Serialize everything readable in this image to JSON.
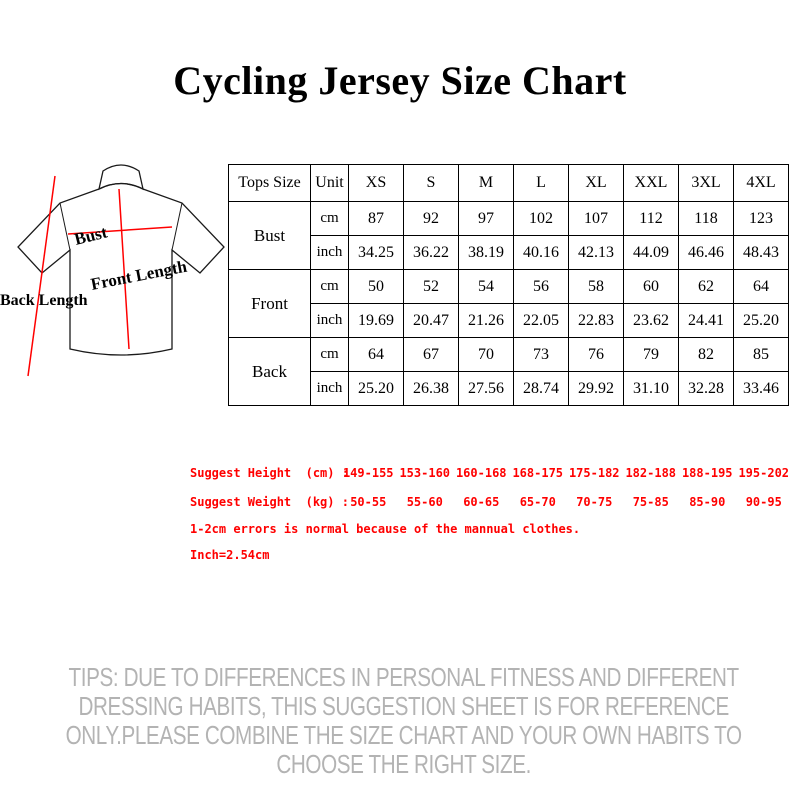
{
  "page": {
    "title": "Cycling Jersey Size Chart"
  },
  "diagram": {
    "labels": {
      "bust": "Bust",
      "front_length": "Front Length",
      "back_length": "Back Length"
    },
    "line_color": "#ff0000"
  },
  "size_table": {
    "header": [
      "Tops Size",
      "Unit",
      "XS",
      "S",
      "M",
      "L",
      "XL",
      "XXL",
      "3XL",
      "4XL"
    ],
    "groups": [
      {
        "name": "Bust",
        "rows": [
          {
            "unit": "cm",
            "values": [
              "87",
              "92",
              "97",
              "102",
              "107",
              "112",
              "118",
              "123"
            ]
          },
          {
            "unit": "inch",
            "values": [
              "34.25",
              "36.22",
              "38.19",
              "40.16",
              "42.13",
              "44.09",
              "46.46",
              "48.43"
            ]
          }
        ]
      },
      {
        "name": "Front",
        "rows": [
          {
            "unit": "cm",
            "values": [
              "50",
              "52",
              "54",
              "56",
              "58",
              "60",
              "62",
              "64"
            ]
          },
          {
            "unit": "inch",
            "values": [
              "19.69",
              "20.47",
              "21.26",
              "22.05",
              "22.83",
              "23.62",
              "24.41",
              "25.20"
            ]
          }
        ]
      },
      {
        "name": "Back",
        "rows": [
          {
            "unit": "cm",
            "values": [
              "64",
              "67",
              "70",
              "73",
              "76",
              "79",
              "82",
              "85"
            ]
          },
          {
            "unit": "inch",
            "values": [
              "25.20",
              "26.38",
              "27.56",
              "28.74",
              "29.92",
              "31.10",
              "32.28",
              "33.46"
            ]
          }
        ]
      }
    ]
  },
  "suggestions": {
    "color": "#ff0000",
    "height_label": "Suggest Height  (cm) :",
    "height_values": [
      "149-155",
      "153-160",
      "160-168",
      "168-175",
      "175-182",
      "182-188",
      "188-195",
      "195-202"
    ],
    "weight_label": "Suggest Weight  (kg) :",
    "weight_values": [
      "50-55",
      "55-60",
      "60-65",
      "65-70",
      "70-75",
      "75-85",
      "85-90",
      "90-95"
    ],
    "note1": "1-2cm errors is normal because of the mannual clothes.",
    "note2": "Inch=2.54cm"
  },
  "tips": {
    "color": "#b3b3b3",
    "text": "TIPS: DUE TO DIFFERENCES IN PERSONAL FITNESS AND DIFFERENT DRESSING HABITS, THIS SUGGESTION SHEET IS FOR REFERENCE ONLY.PLEASE COMBINE THE SIZE CHART AND YOUR OWN HABITS TO CHOOSE THE RIGHT SIZE."
  }
}
